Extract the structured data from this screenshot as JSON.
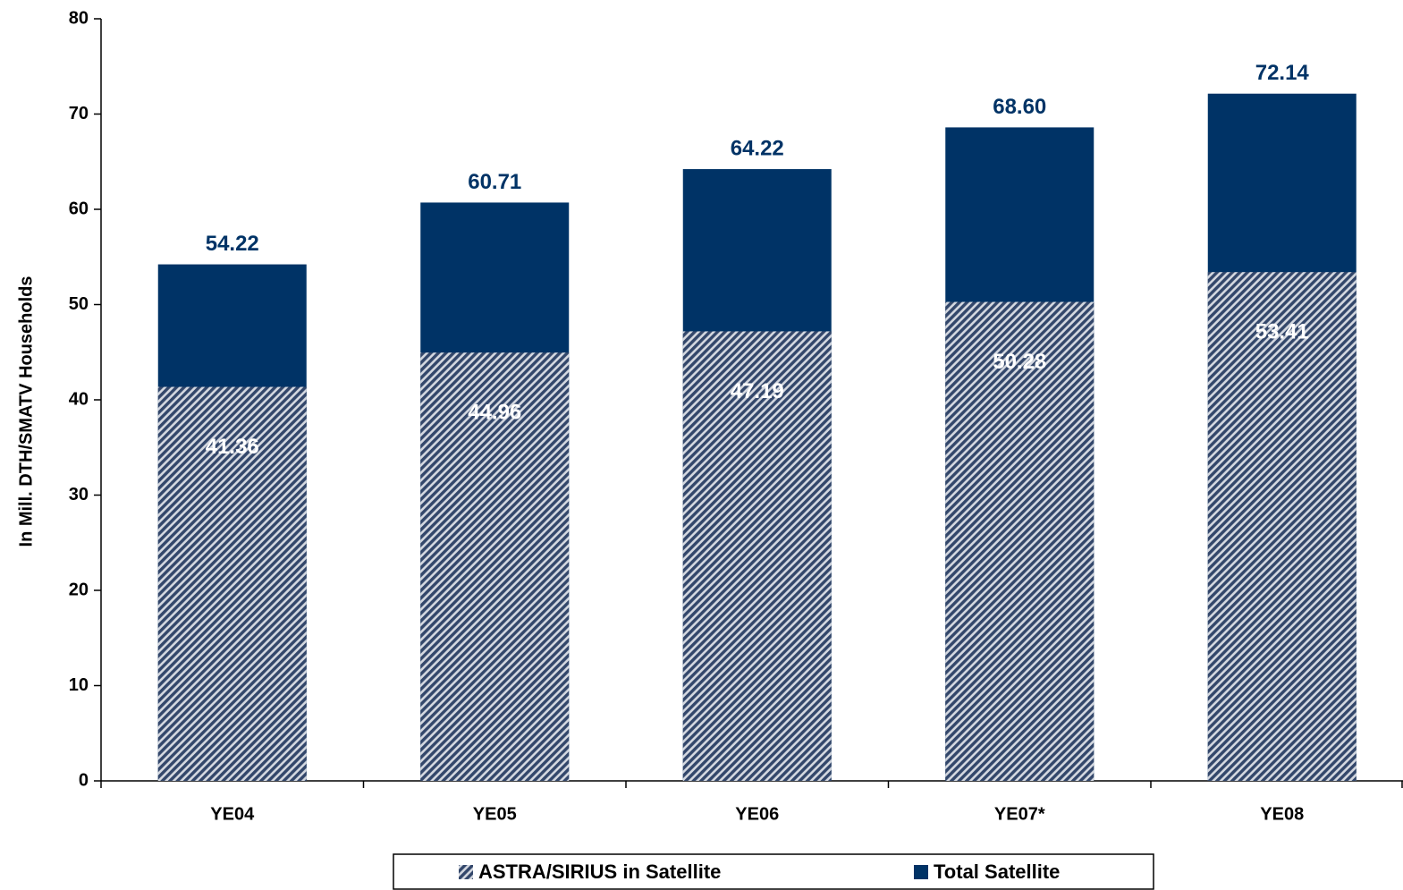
{
  "chart_data": {
    "type": "bar",
    "overlap": true,
    "y_label": "In Mill. DTH/SMATV Households",
    "categories": [
      "YE04",
      "YE05",
      "YE06",
      "YE07*",
      "YE08"
    ],
    "series": [
      {
        "name": "Total Satellite",
        "color": "#003366",
        "pattern": "solid",
        "values": [
          54.22,
          60.71,
          64.22,
          68.6,
          72.14
        ],
        "value_labels": [
          "54.22",
          "60.71",
          "64.22",
          "68.60",
          "72.14"
        ],
        "label_color": "#003366"
      },
      {
        "name": "ASTRA/SIRIUS in Satellite",
        "color": "#33476b",
        "pattern": "hatch",
        "values": [
          41.36,
          44.96,
          47.19,
          50.28,
          53.41
        ],
        "value_labels": [
          "41.36",
          "44.96",
          "47.19",
          "50.28",
          "53.41"
        ],
        "label_color": "#ffffff"
      }
    ],
    "ylim": [
      0,
      80
    ],
    "yticks": [
      0,
      10,
      20,
      30,
      40,
      50,
      60,
      70,
      80
    ],
    "legend": "bottom"
  }
}
